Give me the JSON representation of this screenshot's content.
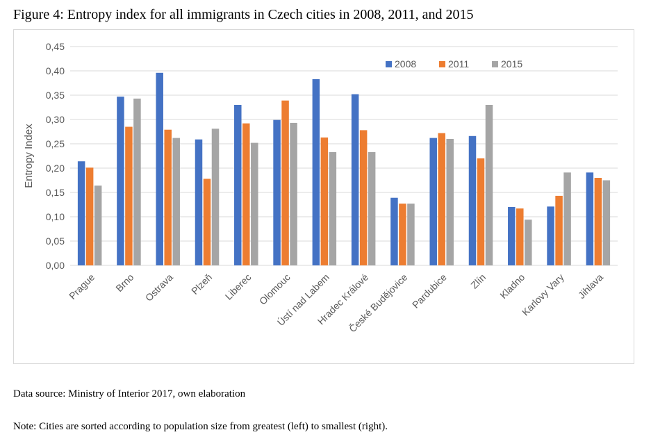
{
  "figure": {
    "title": "Figure 4: Entropy index for all immigrants in Czech cities in 2008, 2011, and 2015",
    "source": "Data source: Ministry of Interior 2017, own elaboration",
    "note": "Note: Cities are sorted according to population size from greatest (left) to smallest (right)."
  },
  "colors": {
    "2008": "#4472c4",
    "2011": "#ed7d31",
    "2015": "#a5a5a5",
    "grid": "#d9d9d9",
    "text": "#595959"
  },
  "chart_data": {
    "type": "bar",
    "categories": [
      "Prague",
      "Brno",
      "Ostrava",
      "Plzeň",
      "Liberec",
      "Olomouc",
      "Ústí nad Labem",
      "Hradec Králové",
      "České Budějovice",
      "Pardubice",
      "Zlín",
      "Kladno",
      "Karlovy Vary",
      "Jihlava"
    ],
    "series": [
      {
        "name": "2008",
        "values": [
          0.214,
          0.347,
          0.396,
          0.259,
          0.33,
          0.299,
          0.383,
          0.352,
          0.139,
          0.262,
          0.266,
          0.12,
          0.121,
          0.191
        ]
      },
      {
        "name": "2011",
        "values": [
          0.201,
          0.285,
          0.279,
          0.178,
          0.292,
          0.339,
          0.263,
          0.278,
          0.127,
          0.272,
          0.22,
          0.117,
          0.143,
          0.18
        ]
      },
      {
        "name": "2015",
        "values": [
          0.164,
          0.343,
          0.262,
          0.281,
          0.252,
          0.293,
          0.233,
          0.233,
          0.127,
          0.26,
          0.33,
          0.094,
          0.191,
          0.175
        ]
      }
    ],
    "title": "",
    "xlabel": "",
    "ylabel": "Entropy Index",
    "ylim": [
      0,
      0.45
    ],
    "yticks": [
      "0,00",
      "0,05",
      "0,10",
      "0,15",
      "0,20",
      "0,25",
      "0,30",
      "0,35",
      "0,40",
      "0,45"
    ],
    "grid": true,
    "legend": "top-right"
  }
}
